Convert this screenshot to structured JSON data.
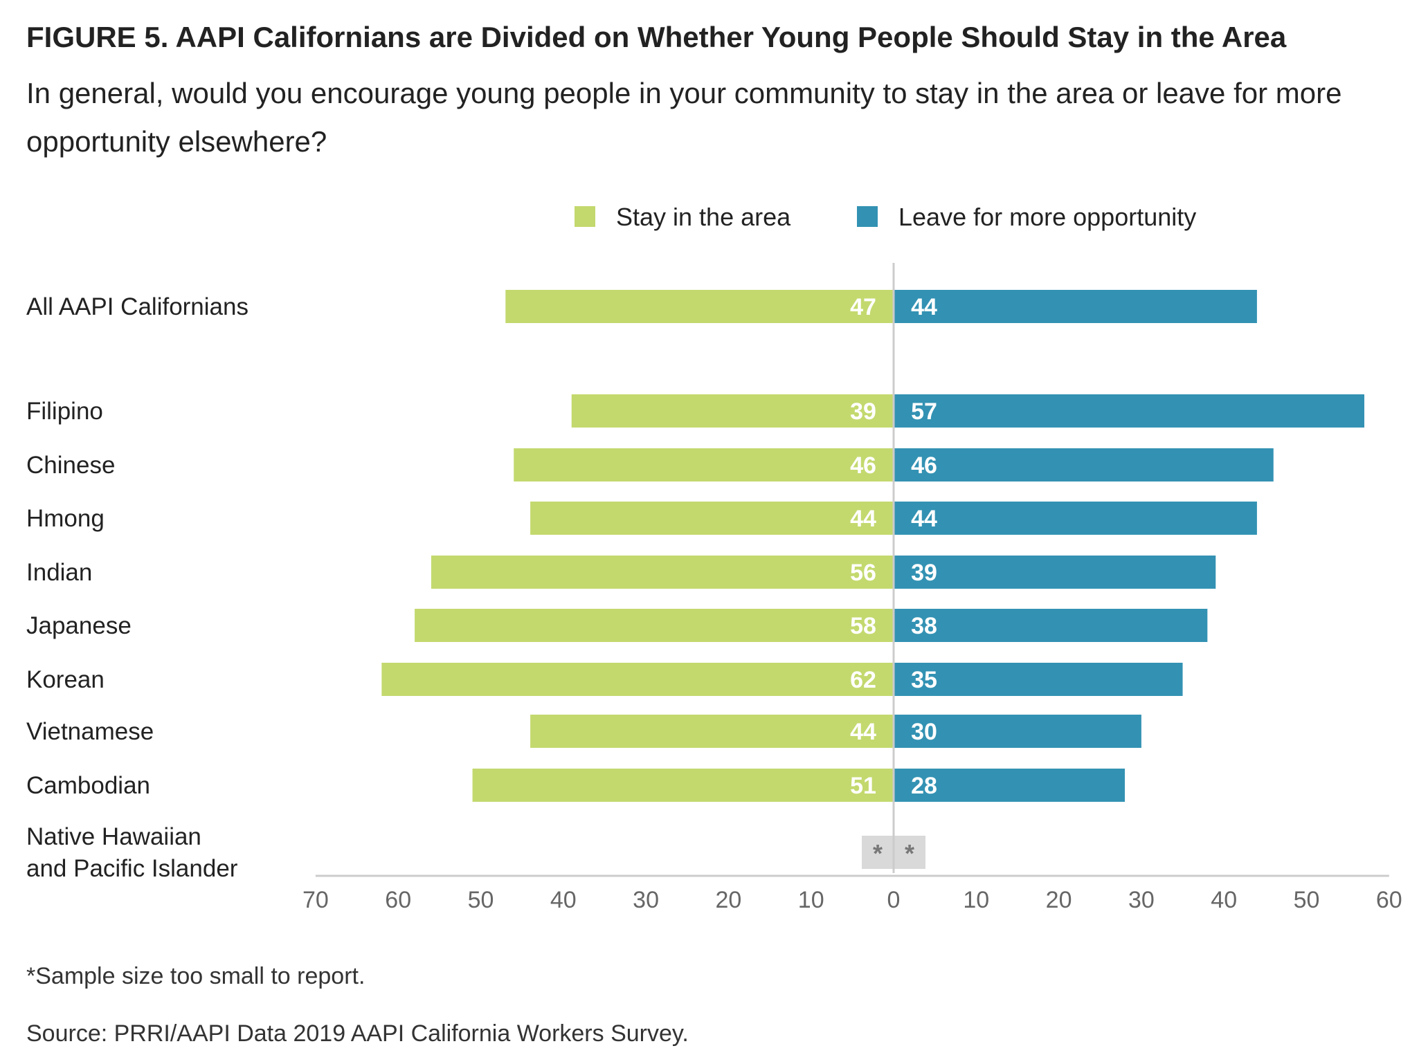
{
  "title": "FIGURE 5. AAPI Californians are Divided on Whether Young People Should Stay in the Area",
  "subtitle": "In general, would you encourage young people in your community to stay in the area or leave for more opportunity elsewhere?",
  "footnote": "*Sample size too small to report.",
  "source": "Source: PRRI/AAPI Data 2019 AAPI California Workers Survey.",
  "colors": {
    "stay": "#c3d96e",
    "leave": "#3392b3",
    "na": "#d9d9d9",
    "axis": "#cccccc",
    "tick_text": "#666666"
  },
  "chart_data": {
    "type": "bar",
    "orientation": "horizontal-diverging",
    "categories": [
      "All AAPI Californians",
      "Filipino",
      "Chinese",
      "Hmong",
      "Indian",
      "Japanese",
      "Korean",
      "Vietnamese",
      "Cambodian",
      "Native Hawaiian and Pacific Islander"
    ],
    "category_lines": [
      [
        "All AAPI Californians"
      ],
      [
        "Filipino"
      ],
      [
        "Chinese"
      ],
      [
        "Hmong"
      ],
      [
        "Indian"
      ],
      [
        "Japanese"
      ],
      [
        "Korean"
      ],
      [
        "Vietnamese"
      ],
      [
        "Cambodian"
      ],
      [
        "Native Hawaiian",
        "and Pacific Islander"
      ]
    ],
    "series": [
      {
        "name": "Stay in the area",
        "direction": "left",
        "values": [
          47,
          39,
          46,
          44,
          56,
          58,
          62,
          44,
          51,
          null
        ]
      },
      {
        "name": "Leave for more opportunity",
        "direction": "right",
        "values": [
          44,
          57,
          46,
          44,
          39,
          38,
          35,
          30,
          28,
          null
        ]
      }
    ],
    "na_label": "*",
    "x_ticks_left": [
      "70",
      "60",
      "50",
      "40",
      "30",
      "20",
      "10"
    ],
    "x_ticks_right": [
      "0",
      "10",
      "20",
      "30",
      "40",
      "50",
      "60"
    ],
    "xlim_left": 70,
    "xlim_right": 60,
    "legend_position": "top-center",
    "grid": false
  }
}
